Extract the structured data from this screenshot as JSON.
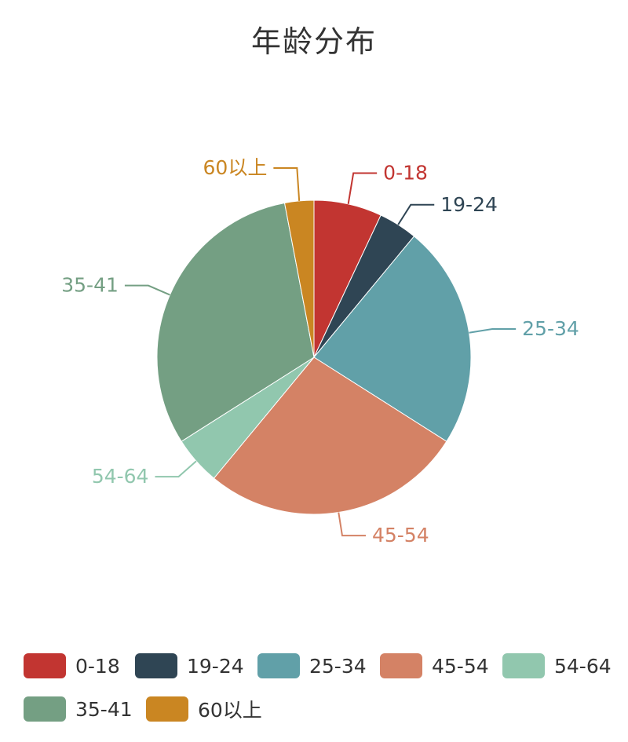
{
  "chart_data": {
    "type": "pie",
    "title": "年龄分布",
    "legend_position": "bottom",
    "series": [
      {
        "name": "0-18",
        "value": 7,
        "color": "#c23531"
      },
      {
        "name": "19-24",
        "value": 4,
        "color": "#2f4554"
      },
      {
        "name": "25-34",
        "value": 23,
        "color": "#61a0a8"
      },
      {
        "name": "45-54",
        "value": 27,
        "color": "#d48265"
      },
      {
        "name": "54-64",
        "value": 5,
        "color": "#91c7ae"
      },
      {
        "name": "35-41",
        "value": 31,
        "color": "#749f83"
      },
      {
        "name": "60以上",
        "value": 3,
        "color": "#ca8622"
      }
    ]
  }
}
